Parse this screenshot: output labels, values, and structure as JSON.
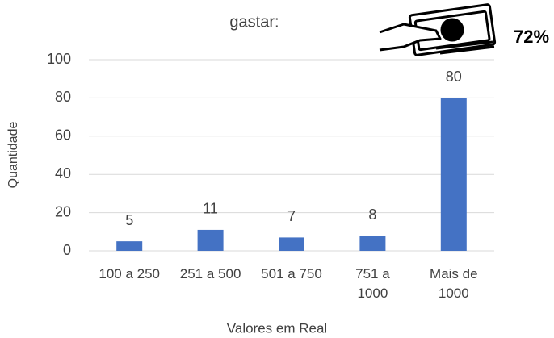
{
  "chart_data": {
    "type": "bar",
    "title": "gastar:",
    "annotation": "72%",
    "categories": [
      "100 a 250",
      "251 a 500",
      "501 a 750",
      "751 a 1000",
      "Mais de 1000"
    ],
    "values": [
      5,
      11,
      7,
      8,
      80
    ],
    "color": "#4472c4",
    "x_label": "Valores em Real",
    "y_label": "Quantidade",
    "ylim": [
      0,
      100
    ],
    "yticks": [
      0,
      20,
      40,
      60,
      80,
      100
    ],
    "grid": true
  }
}
